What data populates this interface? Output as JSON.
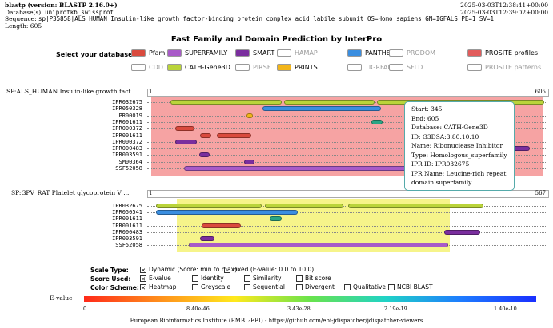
{
  "header": {
    "app": "blastp (version: BLASTP 2.16.0+)",
    "db_label": "Database(s):",
    "db_value": "uniprotkb_swissprot",
    "seq_label": "Sequence:",
    "seq_value": "sp|P35858|ALS_HUMAN Insulin-like growth factor-binding protein complex acid labile subunit OS=Homo sapiens GN=IGFALS PE=1 SV=1",
    "length": "Length: 605",
    "ts1": "2025-03-03T12:38:41+00:00",
    "ts2": "2025-03-03T12:39:02+00:00"
  },
  "title": "Fast Family and Domain Prediction by InterPro",
  "db_select_label": "Select your database:",
  "databases": [
    {
      "label": "Pfam",
      "color": "#d94a3d",
      "on": true
    },
    {
      "label": "SUPERFAMILY",
      "color": "#a85ac8",
      "on": true
    },
    {
      "label": "SMART",
      "color": "#7a2e9e",
      "on": true
    },
    {
      "label": "HAMAP",
      "color": "#ffffff",
      "on": false
    },
    {
      "label": "PANTHER",
      "color": "#3a8ee0",
      "on": true
    },
    {
      "label": "PRODOM",
      "color": "#ffffff",
      "on": false
    },
    {
      "label": "PROSITE profiles",
      "color": "#e25c5c",
      "on": true
    },
    {
      "label": "CDD",
      "color": "#ffffff",
      "on": false
    },
    {
      "label": "CATH-Gene3D",
      "color": "#bad43a",
      "on": true
    },
    {
      "label": "PIRSF",
      "color": "#ffffff",
      "on": false
    },
    {
      "label": "PRINTS",
      "color": "#f2b51a",
      "on": true
    },
    {
      "label": "TIGRFAMs",
      "color": "#ffffff",
      "on": false
    },
    {
      "label": "SFLD",
      "color": "#ffffff",
      "on": false
    },
    {
      "label": "PROSITE patterns",
      "color": "#ffffff",
      "on": false
    }
  ],
  "panels": [
    {
      "name": "SP:ALS_HUMAN  Insulin-like growth fact ...",
      "start": "1",
      "end": "605",
      "rows": [
        "IPR032675",
        "IPR050328",
        "PR00019",
        "IPR001611",
        "IPR000372",
        "IPR001611",
        "IPR000372",
        "IPR000483",
        "IPR003591",
        "SM00364",
        "SSF52058"
      ]
    },
    {
      "name": "SP:GPV_RAT  Platelet glycoprotein V ...",
      "start": "1",
      "end": "567",
      "rows": [
        "IPR032675",
        "IPR050541",
        "IPR001611",
        "IPR001611",
        "IPR000483",
        "IPR003591",
        "SSF52058"
      ]
    }
  ],
  "tooltip": {
    "start": "Start: 345",
    "end": "End: 605",
    "database": "Database: CATH-Gene3D",
    "id": "ID: G3DSA:3.80.10.10",
    "name": "Name: Ribonuclease Inhibitor",
    "type": "Type: Homologous_superfamily",
    "ipr_id": "IPR ID: IPR032675",
    "ipr_name": "IPR Name: Leucine-rich repeat domain superfamily"
  },
  "controls": {
    "scale_label": "Scale Type:",
    "scale_opts": [
      {
        "label": "Dynamic (Score: min to max)",
        "checked": true
      },
      {
        "label": "Fixed (E-value: 0.0 to 10.0)",
        "checked": false
      }
    ],
    "score_label": "Score Used:",
    "score_opts": [
      {
        "label": "E-value",
        "checked": true
      },
      {
        "label": "Identity",
        "checked": false
      },
      {
        "label": "Similarity",
        "checked": false
      },
      {
        "label": "Bit score",
        "checked": false
      }
    ],
    "color_label": "Color Scheme:",
    "color_opts": [
      {
        "label": "Heatmap",
        "checked": true
      },
      {
        "label": "Greyscale",
        "checked": false
      },
      {
        "label": "Sequential",
        "checked": false
      },
      {
        "label": "Divergent",
        "checked": false
      },
      {
        "label": "Qualitative",
        "checked": false
      },
      {
        "label": "NCBI BLAST+",
        "checked": false
      }
    ]
  },
  "gradient": {
    "label": "E-value",
    "ticks": [
      "0",
      "8.40e-46",
      "3.43e-28",
      "2.19e-19",
      "1.40e-10"
    ]
  },
  "footer": "European Bioinformatics Institute (EMBL-EBI) - https://github.com/ebi-jdispatcher/jdispatcher-viewers"
}
